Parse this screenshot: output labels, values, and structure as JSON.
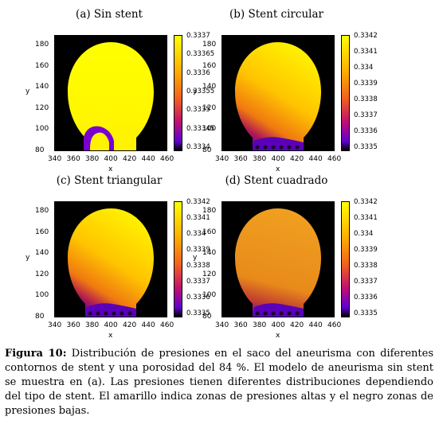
{
  "panels": [
    {
      "title": "(a) Sin stent",
      "colorbar": [
        "0.3337",
        "0.33365",
        "0.3336",
        "0.33355",
        "0.3335",
        "0.33345",
        "0.3334"
      ],
      "style": "a"
    },
    {
      "title": "(b) Stent circular",
      "colorbar": [
        "0.3342",
        "0.3341",
        "0.334",
        "0.3339",
        "0.3338",
        "0.3337",
        "0.3336",
        "0.3335"
      ],
      "style": "b"
    },
    {
      "title": "(c) Stent triangular",
      "colorbar": [
        "0.3342",
        "0.3341",
        "0.334",
        "0.3339",
        "0.3338",
        "0.3337",
        "0.3336",
        "0.3335"
      ],
      "style": "c"
    },
    {
      "title": "(d) Stent cuadrado",
      "colorbar": [
        "0.3342",
        "0.3341",
        "0.334",
        "0.3339",
        "0.3338",
        "0.3337",
        "0.3336",
        "0.3335"
      ],
      "style": "d"
    }
  ],
  "axes": {
    "xticks": [
      "340",
      "360",
      "380",
      "400",
      "420",
      "440",
      "460"
    ],
    "yticks": [
      "180",
      "160",
      "140",
      "120",
      "100",
      "80"
    ],
    "xlabel": "x",
    "ylabel": "y"
  },
  "caption": {
    "label": "Figura 10:",
    "text": "Distribución de presiones en el saco del aneurisma con diferentes contornos de stent y una porosidad del 84 %. El modelo de aneurisma sin stent se muestra en (a). Las presiones tienen diferentes distribuciones dependiendo del tipo de stent. El amarillo indica zonas de presiones altas y el negro zonas de presiones bajas."
  }
}
